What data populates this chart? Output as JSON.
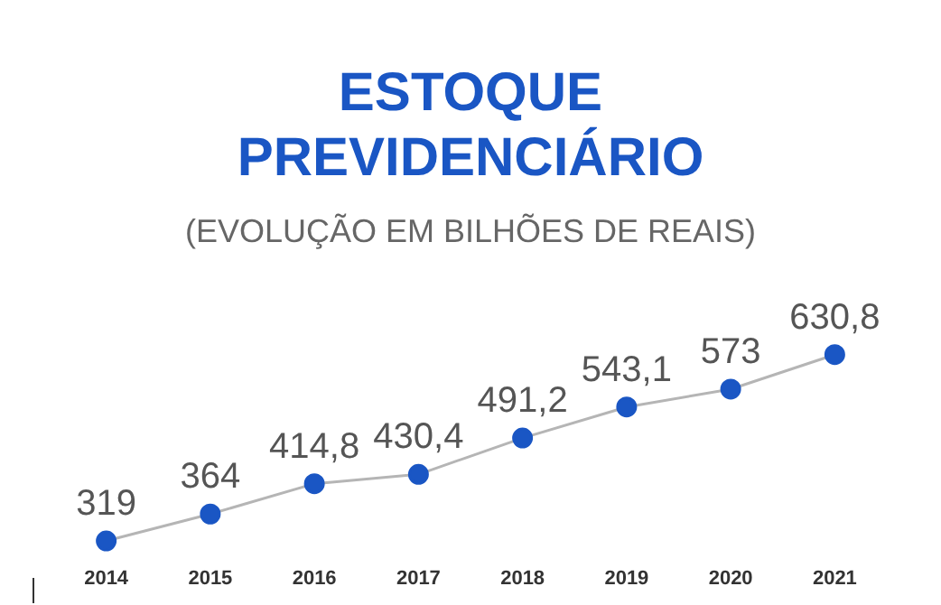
{
  "chart_data": {
    "type": "line",
    "title": "ESTOQUE\nPREVIDENCIÁRIO",
    "subtitle": "(EVOLUÇÃO EM BILHÕES DE REAIS)",
    "categories": [
      "2014",
      "2015",
      "2016",
      "2017",
      "2018",
      "2019",
      "2020",
      "2021"
    ],
    "series": [
      {
        "color": "#1a56c4",
        "values": [
          319,
          364,
          414.8,
          430.4,
          491.2,
          543.1,
          573,
          630.8
        ],
        "value_labels": [
          "319",
          "364",
          "414,8",
          "430,4",
          "491,2",
          "543,1",
          "573",
          "630,8"
        ]
      }
    ],
    "marker": "circle",
    "grid": false,
    "legend": false
  }
}
